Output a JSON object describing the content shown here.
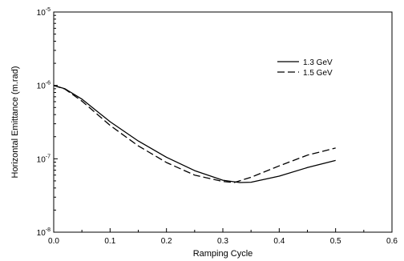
{
  "chart_data": {
    "type": "line",
    "title": "",
    "xlabel": "Ramping Cycle",
    "ylabel": "Horizontal Emittance (m.rad)",
    "xlim": [
      0.0,
      0.6
    ],
    "ylim": [
      1e-08,
      1e-05
    ],
    "yscale": "log",
    "grid": false,
    "legend_position": "top-right",
    "x_ticks": [
      "0.0",
      "0.1",
      "0.2",
      "0.3",
      "0.4",
      "0.5",
      "0.6"
    ],
    "y_ticks": [
      {
        "base": "10",
        "exp": "-8"
      },
      {
        "base": "10",
        "exp": "-7"
      },
      {
        "base": "10",
        "exp": "-6"
      },
      {
        "base": "10",
        "exp": "-5"
      }
    ],
    "series": [
      {
        "name": "1.3 GeV",
        "style": "solid",
        "x": [
          0.0,
          0.02,
          0.05,
          0.1,
          0.15,
          0.2,
          0.25,
          0.3,
          0.33,
          0.35,
          0.4,
          0.45,
          0.5
        ],
        "y": [
          1e-06,
          9e-07,
          6.5e-07,
          3.2e-07,
          1.75e-07,
          1.05e-07,
          6.9e-08,
          5.1e-08,
          4.75e-08,
          4.8e-08,
          5.8e-08,
          7.6e-08,
          9.5e-08
        ]
      },
      {
        "name": "1.5 GeV",
        "style": "dashed",
        "x": [
          0.0,
          0.02,
          0.05,
          0.1,
          0.15,
          0.2,
          0.25,
          0.3,
          0.32,
          0.35,
          0.4,
          0.45,
          0.5
        ],
        "y": [
          1e-06,
          8.9e-07,
          6.1e-07,
          2.85e-07,
          1.5e-07,
          8.9e-08,
          6e-08,
          4.9e-08,
          4.75e-08,
          5.6e-08,
          8e-08,
          1.12e-07,
          1.4e-07
        ]
      }
    ]
  }
}
